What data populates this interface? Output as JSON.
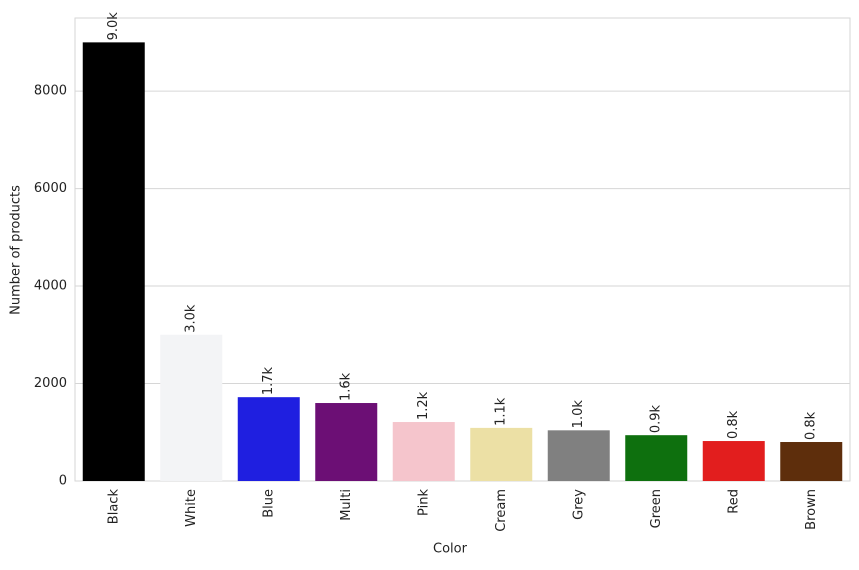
{
  "chart_data": {
    "type": "bar",
    "x_label": "Color",
    "y_label": "Number of products",
    "categories": [
      "Black",
      "White",
      "Blue",
      "Multi",
      "Pink",
      "Cream",
      "Grey",
      "Green",
      "Red",
      "Brown"
    ],
    "values": [
      9000,
      3000,
      1720,
      1600,
      1210,
      1090,
      1040,
      940,
      820,
      800
    ],
    "value_labels": [
      "9.0k",
      "3.0k",
      "1.7k",
      "1.6k",
      "1.2k",
      "1.1k",
      "1.0k",
      "0.9k",
      "0.8k",
      "0.8k"
    ],
    "colors": [
      "#000000",
      "#f3f4f6",
      "#1f1fe0",
      "#6c0f75",
      "#f5c5cc",
      "#ece0a5",
      "#808080",
      "#0e700e",
      "#e21e1e",
      "#5e2e0c"
    ],
    "ylim": [
      0,
      9500
    ],
    "yticks": [
      0,
      2000,
      4000,
      6000,
      8000
    ],
    "grid": true
  }
}
